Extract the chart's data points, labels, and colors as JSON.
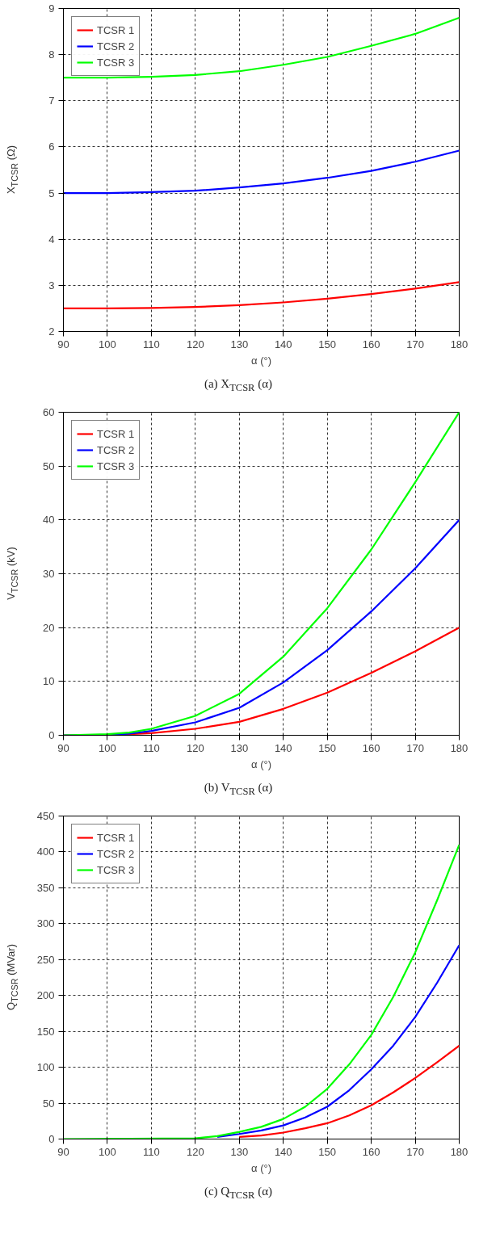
{
  "chart_data": [
    {
      "type": "line",
      "title": "(a) X$_{TCSR}$ (α)",
      "xlabel": "α (°)",
      "ylabel": "X$_{TCSR}$ (Ω)",
      "x": [
        90,
        100,
        110,
        120,
        130,
        140,
        150,
        160,
        170,
        180
      ],
      "xlim": [
        90,
        180
      ],
      "xticks": [
        90,
        100,
        110,
        120,
        130,
        140,
        150,
        160,
        170,
        180
      ],
      "ylim": [
        2,
        9
      ],
      "yticks": [
        2,
        3,
        4,
        5,
        6,
        7,
        8,
        9
      ],
      "grid": true,
      "legend": "top left",
      "line_style": "solid",
      "series": [
        {
          "name": "TCSR 1",
          "color": "#ff0000",
          "values": [
            2.5,
            2.5,
            2.51,
            2.53,
            2.57,
            2.63,
            2.71,
            2.81,
            2.93,
            3.07
          ]
        },
        {
          "name": "TCSR 2",
          "color": "#0000ff",
          "values": [
            5.0,
            5.0,
            5.02,
            5.05,
            5.12,
            5.21,
            5.33,
            5.48,
            5.68,
            5.92
          ]
        },
        {
          "name": "TCSR 3",
          "color": "#00ff00",
          "values": [
            7.5,
            7.5,
            7.52,
            7.56,
            7.64,
            7.78,
            7.95,
            8.19,
            8.45,
            8.8
          ]
        }
      ]
    },
    {
      "type": "line",
      "title": "(b) V$_{TCSR}$ (α)",
      "xlabel": "α (°)",
      "ylabel": "V$_{TCSR}$ (kV)",
      "x": [
        90,
        100,
        105,
        110,
        120,
        130,
        140,
        150,
        160,
        170,
        180
      ],
      "xlim": [
        90,
        180
      ],
      "xticks": [
        90,
        100,
        110,
        120,
        130,
        140,
        150,
        160,
        170,
        180
      ],
      "ylim": [
        0,
        60
      ],
      "yticks": [
        0,
        10,
        20,
        30,
        40,
        50,
        60
      ],
      "grid": true,
      "legend": "top left",
      "line_style": "solid",
      "series": [
        {
          "name": "TCSR 1",
          "color": "#ff0000",
          "values": [
            0,
            0,
            0.2,
            0.4,
            1.2,
            2.5,
            4.9,
            7.9,
            11.6,
            15.6,
            20
          ]
        },
        {
          "name": "TCSR 2",
          "color": "#0000ff",
          "values": [
            0,
            null,
            0.3,
            0.8,
            2.4,
            5.1,
            9.8,
            15.8,
            23,
            31,
            40
          ]
        },
        {
          "name": "TCSR 3",
          "color": "#00ff00",
          "values": [
            0,
            0.2,
            0.5,
            1.2,
            3.6,
            7.7,
            14.6,
            23.6,
            34.5,
            47,
            60
          ]
        }
      ]
    },
    {
      "type": "line",
      "title": "(c) Q$_{TCSR}$ (α)",
      "xlabel": "α (°)",
      "ylabel": "Q$_{TCSR}$ (MVar)",
      "x": [
        90,
        120,
        125,
        130,
        135,
        140,
        145,
        150,
        155,
        160,
        165,
        170,
        175,
        180
      ],
      "xlim": [
        90,
        180
      ],
      "xticks": [
        90,
        100,
        110,
        120,
        130,
        140,
        150,
        160,
        170,
        180
      ],
      "ylim": [
        0,
        450
      ],
      "yticks": [
        0,
        50,
        100,
        150,
        200,
        250,
        300,
        350,
        400,
        450
      ],
      "grid": true,
      "legend": "top left",
      "line_style": "solid",
      "series": [
        {
          "name": "TCSR 1",
          "color": "#ff0000",
          "x": [
            130,
            135,
            140,
            145,
            150,
            155,
            160,
            165,
            170,
            175,
            180
          ],
          "values": [
            3,
            5,
            9,
            15,
            22,
            33,
            47,
            65,
            85,
            107,
            130
          ]
        },
        {
          "name": "TCSR 2",
          "color": "#0000ff",
          "x": [
            125,
            130,
            135,
            140,
            145,
            150,
            155,
            160,
            165,
            170,
            175,
            180
          ],
          "values": [
            3,
            7,
            12,
            19,
            30,
            45,
            68,
            97,
            130,
            170,
            218,
            270
          ]
        },
        {
          "name": "TCSR 3",
          "color": "#00ff00",
          "values": [
            0,
            1,
            4,
            10,
            17,
            28,
            45,
            70,
            104,
            145,
            198,
            260,
            333,
            410
          ]
        }
      ]
    }
  ]
}
